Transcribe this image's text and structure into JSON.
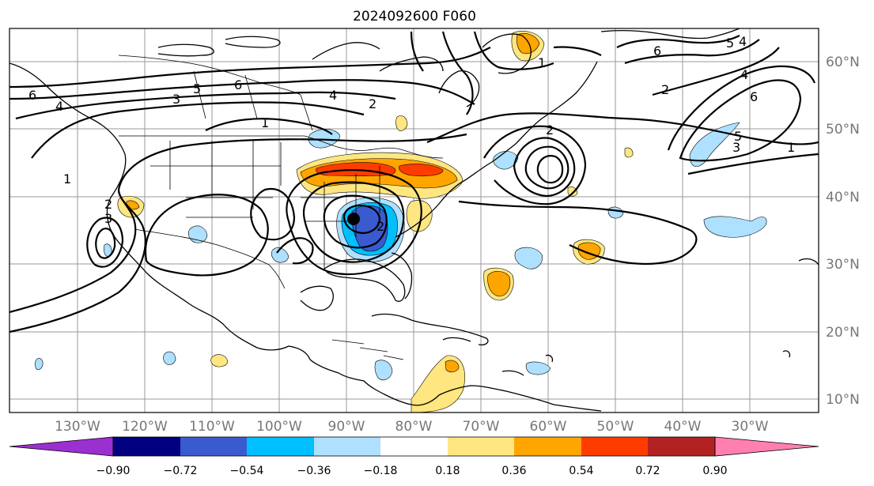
{
  "title": "2024092600 F060",
  "lon_labels": [
    "130°W",
    "120°W",
    "110°W",
    "100°W",
    "90°W",
    "80°W",
    "70°W",
    "60°W",
    "50°W",
    "40°W",
    "30°W"
  ],
  "lat_labels": [
    "60°N",
    "50°N",
    "40°N",
    "30°N",
    "20°N",
    "10°N"
  ],
  "colorbar": {
    "colors": [
      "#9b30d0",
      "#000080",
      "#3a5ad0",
      "#00bfff",
      "#aee0ff",
      "#ffffff",
      "#ffe680",
      "#ffa500",
      "#ff3c00",
      "#b22222",
      "#ff80b0"
    ],
    "labels": [
      "−0.90",
      "−0.72",
      "−0.54",
      "−0.36",
      "−0.18",
      "0.18",
      "0.36",
      "0.54",
      "0.72",
      "0.90"
    ]
  },
  "contour_labels": [
    "6",
    "4",
    "3",
    "5",
    "6",
    "4",
    "2",
    "1",
    "1",
    "2",
    "3",
    "2",
    "6",
    "4",
    "2",
    "5",
    "6",
    "4",
    "5",
    "3",
    "1",
    "1",
    "2"
  ],
  "colors": {
    "lightblue": "#aee0ff",
    "blue": "#00bfff",
    "darkblue": "#3a5ad0",
    "yellow": "#ffe680",
    "orange": "#ffa500",
    "red": "#ff3c00"
  }
}
